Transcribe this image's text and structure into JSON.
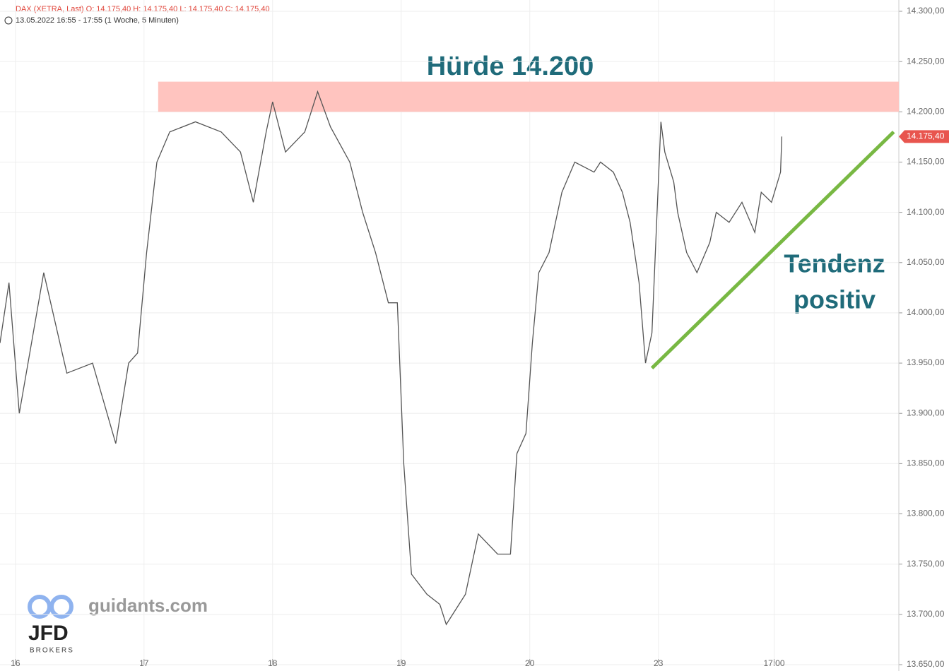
{
  "chart_data": {
    "type": "line",
    "header": "DAX (XETRA, Last)  O: 14.175,40  H: 14.175,40  L: 14.175,40  C: 14.175,40",
    "subheader": "13.05.2022 16:55 - 17:55   (1 Woche, 5 Minuten)",
    "annotations": [
      "Hürde 14.200",
      "Tendenz",
      "positiv"
    ],
    "logo": [
      "guidants.com",
      "JFD",
      "BROKERS"
    ],
    "last_label": "14.175,40",
    "xlim": [
      -0.12,
      6.87
    ],
    "xticks": [
      {
        "value": 0,
        "label": "16"
      },
      {
        "value": 1,
        "label": "17"
      },
      {
        "value": 2,
        "label": "18"
      },
      {
        "value": 3,
        "label": "19"
      },
      {
        "value": 4,
        "label": "20"
      },
      {
        "value": 5,
        "label": "23"
      },
      {
        "value": 5.9,
        "label": "17:00"
      }
    ],
    "ylim": [
      13650,
      14300
    ],
    "yticks": [
      {
        "value": 13650,
        "label": "13.650,00"
      },
      {
        "value": 13700,
        "label": "13.700,00"
      },
      {
        "value": 13750,
        "label": "13.750,00"
      },
      {
        "value": 13800,
        "label": "13.800,00"
      },
      {
        "value": 13850,
        "label": "13.850,00"
      },
      {
        "value": 13900,
        "label": "13.900,00"
      },
      {
        "value": 13950,
        "label": "13.950,00"
      },
      {
        "value": 14000,
        "label": "14.000,00"
      },
      {
        "value": 14050,
        "label": "14.050,00"
      },
      {
        "value": 14100,
        "label": "14.100,00"
      },
      {
        "value": 14150,
        "label": "14.150,00"
      },
      {
        "value": 14200,
        "label": "14.200,00"
      },
      {
        "value": 14250,
        "label": "14.250,00"
      },
      {
        "value": 14300,
        "label": "14.300,00"
      }
    ],
    "grid": true,
    "zone": {
      "x": [
        1.11,
        6.87
      ],
      "y": [
        14200,
        14230
      ],
      "color": "#ffc4bf"
    },
    "trend": {
      "x": [
        4.95,
        6.83
      ],
      "values": [
        13945,
        14180
      ],
      "color": "#78b843"
    },
    "series": [
      {
        "name": "DAX",
        "color": "#555555",
        "x": [
          -0.12,
          -0.05,
          0.03,
          0.22,
          0.4,
          0.6,
          0.78,
          0.88,
          0.95,
          1.02,
          1.1,
          1.2,
          1.4,
          1.6,
          1.75,
          1.85,
          1.95,
          2.0,
          2.1,
          2.25,
          2.35,
          2.45,
          2.6,
          2.7,
          2.8,
          2.9,
          2.97,
          3.02,
          3.08,
          3.2,
          3.3,
          3.35,
          3.5,
          3.6,
          3.75,
          3.85,
          3.9,
          3.97,
          4.02,
          4.07,
          4.15,
          4.25,
          4.35,
          4.5,
          4.55,
          4.65,
          4.72,
          4.78,
          4.85,
          4.9,
          4.95,
          5.02,
          5.05,
          5.12,
          5.15,
          5.22,
          5.3,
          5.4,
          5.45,
          5.55,
          5.65,
          5.75,
          5.8,
          5.88,
          5.95,
          5.96
        ],
        "values": [
          13970,
          14030,
          13900,
          14040,
          13940,
          13950,
          13870,
          13950,
          13960,
          14060,
          14150,
          14180,
          14190,
          14180,
          14160,
          14110,
          14180,
          14210,
          14160,
          14180,
          14220,
          14185,
          14150,
          14100,
          14060,
          14010,
          14010,
          13850,
          13740,
          13720,
          13710,
          13690,
          13720,
          13780,
          13760,
          13760,
          13860,
          13880,
          13970,
          14040,
          14060,
          14120,
          14150,
          14140,
          14150,
          14140,
          14120,
          14090,
          14030,
          13950,
          13980,
          14190,
          14160,
          14130,
          14100,
          14060,
          14040,
          14070,
          14100,
          14090,
          14110,
          14080,
          14120,
          14110,
          14140,
          14175.4
        ]
      }
    ]
  }
}
